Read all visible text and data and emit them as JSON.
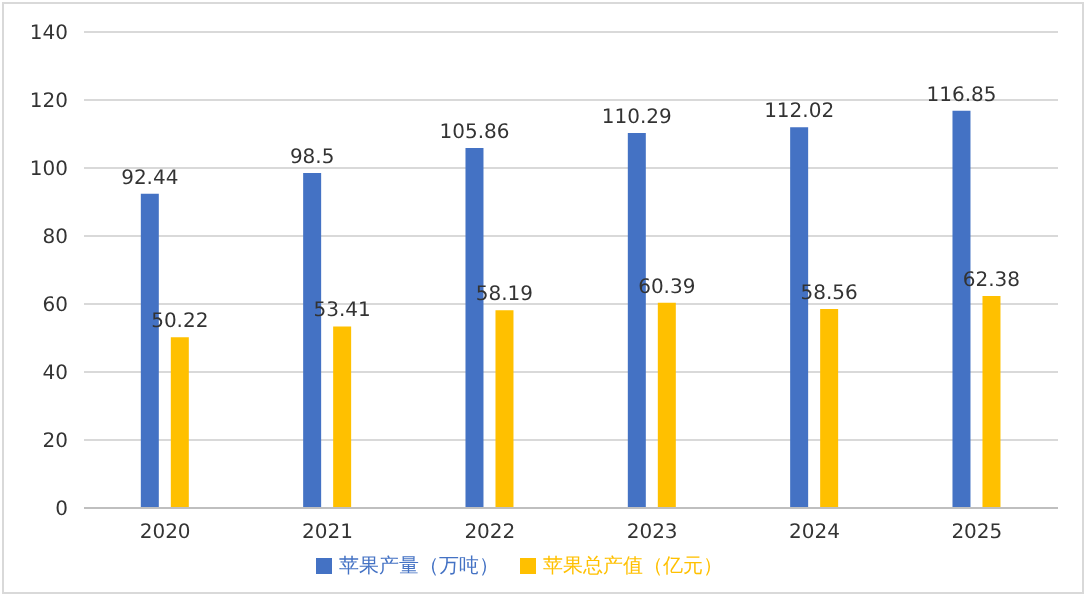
{
  "chart_data": {
    "type": "bar",
    "categories": [
      "2020",
      "2021",
      "2022",
      "2023",
      "2024",
      "2025"
    ],
    "series": [
      {
        "name": "苹果产量（万吨）",
        "color": "#4472c4",
        "values": [
          92.44,
          98.5,
          105.86,
          110.29,
          112.02,
          116.85
        ]
      },
      {
        "name": "苹果总产值（亿元）",
        "color": "#ffc000",
        "values": [
          50.22,
          53.41,
          58.19,
          60.39,
          58.56,
          62.38
        ]
      }
    ],
    "ylim": [
      0,
      140
    ],
    "yticks": [
      0,
      20,
      40,
      60,
      80,
      100,
      120,
      140
    ],
    "grid": "y",
    "legend": "bottom",
    "data_labels": true
  }
}
